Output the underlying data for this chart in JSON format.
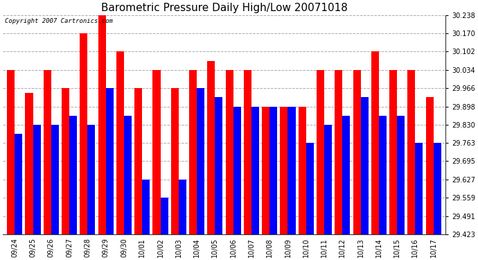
{
  "title": "Barometric Pressure Daily High/Low 20071018",
  "copyright": "Copyright 2007 Cartronics.com",
  "dates": [
    "09/24",
    "09/25",
    "09/26",
    "09/27",
    "09/28",
    "09/29",
    "09/30",
    "10/01",
    "10/02",
    "10/03",
    "10/04",
    "10/05",
    "10/06",
    "10/07",
    "10/08",
    "10/09",
    "10/10",
    "10/11",
    "10/12",
    "10/13",
    "10/14",
    "10/15",
    "10/16",
    "10/17"
  ],
  "highs": [
    30.034,
    29.948,
    30.034,
    29.966,
    30.17,
    30.238,
    30.102,
    29.966,
    30.034,
    29.966,
    30.034,
    30.068,
    30.034,
    30.034,
    29.898,
    29.898,
    29.898,
    30.034,
    30.034,
    30.034,
    30.102,
    30.034,
    30.034,
    29.932
  ],
  "lows": [
    29.797,
    29.83,
    29.83,
    29.864,
    29.83,
    29.966,
    29.864,
    29.627,
    29.559,
    29.627,
    29.966,
    29.932,
    29.898,
    29.898,
    29.898,
    29.898,
    29.763,
    29.83,
    29.864,
    29.932,
    29.864,
    29.864,
    29.763,
    29.763
  ],
  "high_color": "#ff0000",
  "low_color": "#0000ff",
  "bg_color": "#ffffff",
  "grid_color": "#aaaaaa",
  "text_color": "#000000",
  "ymin": 29.423,
  "ymax": 30.238,
  "yticks": [
    29.423,
    29.491,
    29.559,
    29.627,
    29.695,
    29.763,
    29.83,
    29.898,
    29.966,
    30.034,
    30.102,
    30.17,
    30.238
  ],
  "title_fontsize": 11,
  "tick_fontsize": 7,
  "copyright_fontsize": 6.5
}
